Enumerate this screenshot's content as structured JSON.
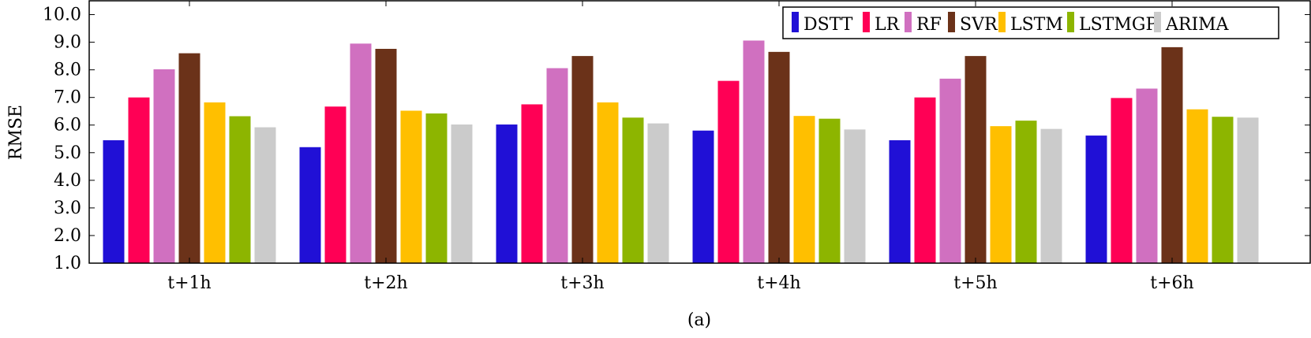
{
  "chart_data": {
    "type": "bar",
    "title": "",
    "xlabel": "",
    "ylabel": "RMSE",
    "caption": "(a)",
    "ylim": [
      1.0,
      10.5
    ],
    "yticks": [
      "1.0",
      "2.0",
      "3.0",
      "4.0",
      "5.0",
      "6.0",
      "7.0",
      "8.0",
      "9.0",
      "10.0"
    ],
    "categories": [
      "t+1h",
      "t+2h",
      "t+3h",
      "t+4h",
      "t+5h",
      "t+6h"
    ],
    "legend_position": "top-right",
    "grid": false,
    "series": [
      {
        "name": "DSTT",
        "color": "#2010d6",
        "values": [
          5.45,
          5.2,
          6.02,
          5.8,
          5.45,
          5.62
        ]
      },
      {
        "name": "LR",
        "color": "#ff0055",
        "values": [
          7.0,
          6.67,
          6.75,
          7.6,
          7.0,
          6.98
        ]
      },
      {
        "name": "RF",
        "color": "#d070c0",
        "values": [
          8.02,
          8.95,
          8.06,
          9.06,
          7.68,
          7.32
        ]
      },
      {
        "name": "SVR",
        "color": "#6b3219",
        "values": [
          8.6,
          8.76,
          8.5,
          8.65,
          8.5,
          8.82
        ]
      },
      {
        "name": "LSTM",
        "color": "#ffbf00",
        "values": [
          6.82,
          6.52,
          6.82,
          6.33,
          5.96,
          6.57
        ]
      },
      {
        "name": "LSTMGP",
        "color": "#8db500",
        "values": [
          6.32,
          6.42,
          6.27,
          6.23,
          6.16,
          6.3
        ]
      },
      {
        "name": "ARIMA",
        "color": "#cbcbcb",
        "values": [
          5.92,
          6.02,
          6.06,
          5.84,
          5.86,
          6.27
        ]
      }
    ]
  }
}
